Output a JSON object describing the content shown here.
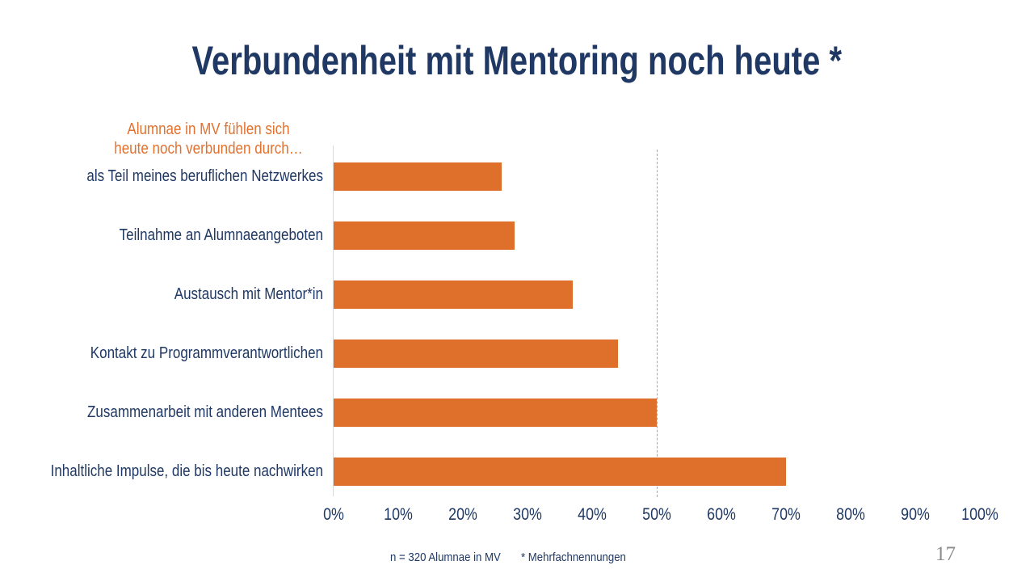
{
  "slide": {
    "title": "Verbundenheit mit Mentoring noch heute *",
    "footnote_n": "n = 320 Alumnae in MV",
    "footnote_star": "* Mehrfachnennungen",
    "page_number": "17"
  },
  "chart_data": {
    "type": "bar",
    "orientation": "horizontal",
    "title": "Alumnae in MV fühlen sich heute noch verbunden durch…",
    "note_lines": [
      "Alumnae in MV fühlen sich",
      "heute noch verbunden durch…"
    ],
    "categories": [
      "als Teil meines beruflichen Netzwerkes",
      "Teilnahme an Alumnaeangeboten",
      "Austausch mit Mentor*in",
      "Kontakt zu Programmverantwortlichen",
      "Zusammenarbeit mit anderen Mentees",
      "Inhaltliche Impulse, die bis heute nachwirken"
    ],
    "values": [
      26,
      28,
      37,
      44,
      50,
      70
    ],
    "unit": "%",
    "xlabel": "",
    "ylabel": "",
    "xlim": [
      0,
      100
    ],
    "x_tick_step": 10,
    "x_tick_labels": [
      "0%",
      "10%",
      "20%",
      "30%",
      "40%",
      "50%",
      "60%",
      "70%",
      "80%",
      "90%",
      "100%"
    ],
    "reference_line_x": 50,
    "grid": false,
    "legend": "none",
    "colors": {
      "bar": "#DE702B",
      "note_text": "#E2712E",
      "label_text": "#1F3864",
      "title_text": "#1F3864",
      "reference_line": "#A6A6A6",
      "axis_line": "#D9D9D9",
      "page_number": "#8C8C8C"
    }
  }
}
